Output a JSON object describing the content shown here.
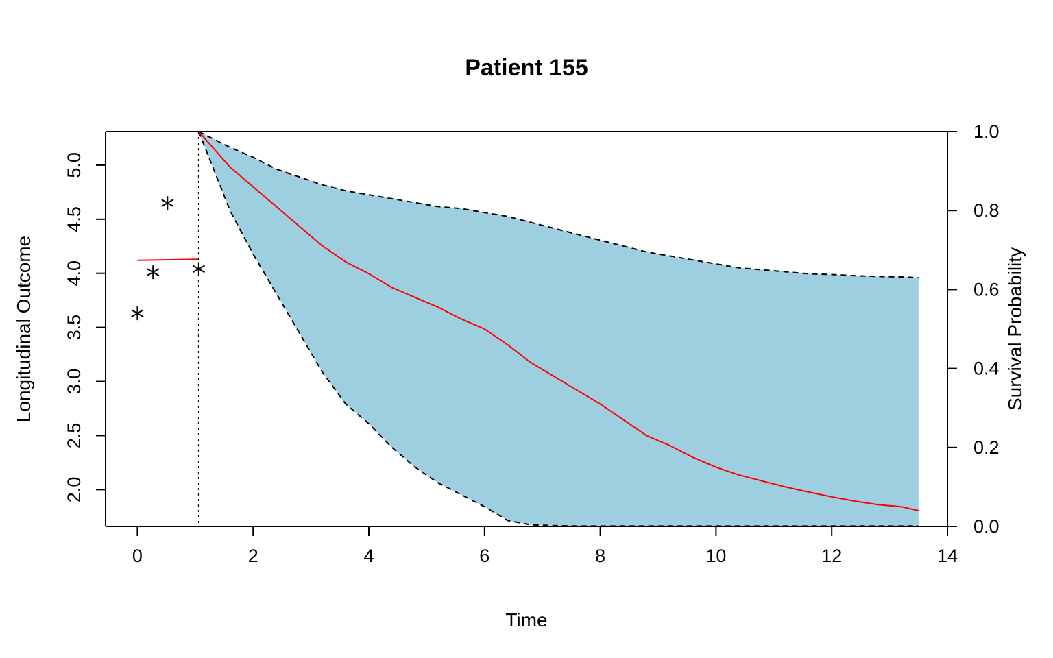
{
  "chart_data": {
    "type": "line",
    "title": "Patient 155",
    "xlabel": "Time",
    "ylabel_left": "Longitudinal Outcome",
    "ylabel_right": "Survival Probability",
    "xlim": [
      -0.55,
      14.0
    ],
    "ylim_left": [
      1.66,
      5.31
    ],
    "ylim_right": [
      0.0,
      1.0
    ],
    "x_ticks": [
      0,
      2,
      4,
      6,
      8,
      10,
      12,
      14
    ],
    "y_left_ticks": [
      2.0,
      2.5,
      3.0,
      3.5,
      4.0,
      4.5,
      5.0
    ],
    "y_right_ticks": [
      0.0,
      0.2,
      0.4,
      0.6,
      0.8,
      1.0
    ],
    "last_observation_time": 1.06,
    "observations": {
      "x": [
        0.0,
        0.27,
        0.52,
        1.06
      ],
      "y": [
        3.63,
        4.01,
        4.65,
        4.04
      ]
    },
    "longitudinal_fit": {
      "x": [
        0.0,
        1.06
      ],
      "y": [
        4.12,
        4.13
      ]
    },
    "survival": {
      "x": [
        1.06,
        1.6,
        2.0,
        2.4,
        2.8,
        3.2,
        3.6,
        4.0,
        4.4,
        4.8,
        5.2,
        5.6,
        6.0,
        6.4,
        6.8,
        7.2,
        7.6,
        8.0,
        8.4,
        8.8,
        9.2,
        9.6,
        10.0,
        10.4,
        10.8,
        11.2,
        11.6,
        12.0,
        12.4,
        12.8,
        13.2,
        13.5
      ],
      "mean": [
        1.0,
        0.91,
        0.86,
        0.81,
        0.76,
        0.71,
        0.67,
        0.64,
        0.605,
        0.58,
        0.555,
        0.525,
        0.5,
        0.46,
        0.415,
        0.38,
        0.345,
        0.31,
        0.27,
        0.23,
        0.205,
        0.175,
        0.15,
        0.13,
        0.115,
        0.1,
        0.087,
        0.075,
        0.064,
        0.055,
        0.05,
        0.04
      ],
      "lower": [
        1.0,
        0.8,
        0.69,
        0.59,
        0.49,
        0.39,
        0.31,
        0.26,
        0.2,
        0.15,
        0.11,
        0.08,
        0.05,
        0.015,
        0.004,
        0.002,
        0.001,
        0.001,
        0.001,
        0.001,
        0.001,
        0.001,
        0.001,
        0.001,
        0.001,
        0.001,
        0.001,
        0.001,
        0.001,
        0.001,
        0.001,
        0.001
      ],
      "upper": [
        1.0,
        0.96,
        0.935,
        0.905,
        0.885,
        0.865,
        0.85,
        0.84,
        0.83,
        0.82,
        0.81,
        0.805,
        0.795,
        0.785,
        0.77,
        0.755,
        0.74,
        0.725,
        0.71,
        0.695,
        0.685,
        0.675,
        0.665,
        0.655,
        0.65,
        0.645,
        0.64,
        0.638,
        0.635,
        0.633,
        0.632,
        0.63
      ]
    },
    "colors": {
      "ci_band": "#9ECFE0",
      "fit_line": "#FF0000",
      "bounds": "#000000",
      "points": "#000000"
    },
    "grid": false,
    "legend": "none"
  }
}
